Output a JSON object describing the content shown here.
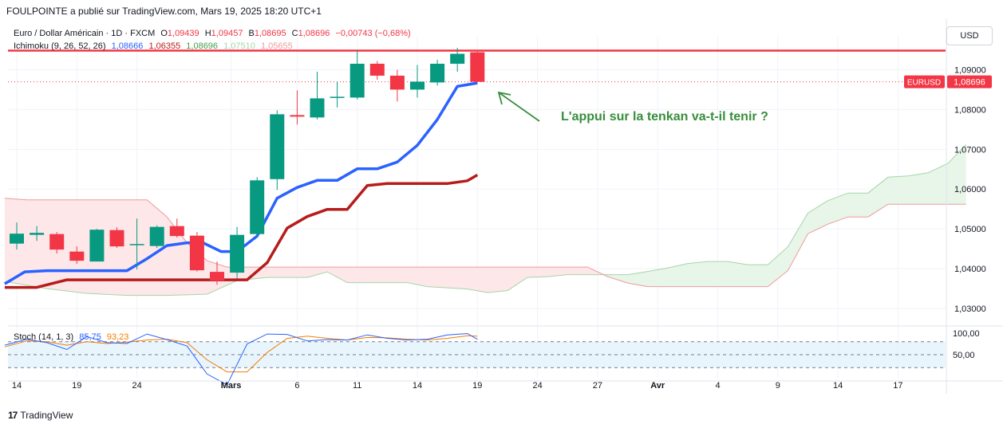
{
  "header": {
    "published_note": "FOULPOINTE a publié sur TradingView.com, Mars 19, 2025 18:20 UTC+1"
  },
  "legend": {
    "symbol_line": "Euro / Dollar Américain · 1D · FXCM",
    "o_label": "O",
    "o_value": "1,09439",
    "h_label": "H",
    "h_value": "1,09457",
    "b_label": "B",
    "b_value": "1,08695",
    "c_label": "C",
    "c_value": "1,08696",
    "change": "−0,00743 (−0,68%)",
    "ichimoku_label": "Ichimoku (9, 26, 52, 26)",
    "ichimoku_values": [
      "1,08666",
      "1,06355",
      "1,08696",
      "1,07510",
      "1,05655"
    ],
    "stoch_label": "Stoch (14, 1, 3)",
    "stoch_values": [
      "85,75",
      "93,23"
    ]
  },
  "currency_button": "USD",
  "price_tag": {
    "symbol": "EURUSD",
    "value": "1,08696"
  },
  "annotation": "L'appui sur la tenkan va-t-il tenir ?",
  "footer": {
    "brand": "TradingView",
    "logo": "17"
  },
  "colors": {
    "up": "#089981",
    "down": "#f23645",
    "tenkan": "#2962ff",
    "kijun": "#b71c1c",
    "cloud_up": "#e8f5e9",
    "cloud_down": "#fde7e9",
    "annotation": "#388e3c",
    "resistance": "#f23645",
    "stoch_k": "#2962ff",
    "stoch_d": "#f57c00"
  },
  "chart_data": {
    "type": "candlestick",
    "x_tick_labels": [
      "14",
      "19",
      "24",
      "Mars",
      "6",
      "11",
      "14",
      "19",
      "24",
      "27",
      "Avr",
      "4",
      "9",
      "14",
      "17"
    ],
    "y_tick_labels": [
      "1,09000",
      "1,08000",
      "1,07000",
      "1,06000",
      "1,05000",
      "1,04000",
      "1,03000"
    ],
    "y_ticks": [
      1.09,
      1.08,
      1.07,
      1.06,
      1.05,
      1.04,
      1.03
    ],
    "ylim": [
      1.0258,
      1.0955
    ],
    "resistance_level": 1.0948,
    "last_price": 1.08696,
    "candles": [
      {
        "o": 1.0463,
        "h": 1.0516,
        "l": 1.0448,
        "c": 1.0488
      },
      {
        "o": 1.0485,
        "h": 1.0507,
        "l": 1.047,
        "c": 1.049
      },
      {
        "o": 1.0487,
        "h": 1.0492,
        "l": 1.0438,
        "c": 1.0448
      },
      {
        "o": 1.0443,
        "h": 1.0456,
        "l": 1.0412,
        "c": 1.042
      },
      {
        "o": 1.0418,
        "h": 1.05,
        "l": 1.0418,
        "c": 1.0498
      },
      {
        "o": 1.0497,
        "h": 1.0504,
        "l": 1.0452,
        "c": 1.0456
      },
      {
        "o": 1.0462,
        "h": 1.0526,
        "l": 1.0398,
        "c": 1.0462
      },
      {
        "o": 1.0457,
        "h": 1.0509,
        "l": 1.0452,
        "c": 1.0505
      },
      {
        "o": 1.0507,
        "h": 1.0526,
        "l": 1.0478,
        "c": 1.0482
      },
      {
        "o": 1.0483,
        "h": 1.0492,
        "l": 1.0393,
        "c": 1.0396
      },
      {
        "o": 1.0392,
        "h": 1.0418,
        "l": 1.036,
        "c": 1.037
      },
      {
        "o": 1.039,
        "h": 1.0505,
        "l": 1.0375,
        "c": 1.0485
      },
      {
        "o": 1.0487,
        "h": 1.063,
        "l": 1.048,
        "c": 1.0622
      },
      {
        "o": 1.0625,
        "h": 1.0798,
        "l": 1.0598,
        "c": 1.0788
      },
      {
        "o": 1.0786,
        "h": 1.0848,
        "l": 1.0762,
        "c": 1.0782
      },
      {
        "o": 1.078,
        "h": 1.0895,
        "l": 1.0775,
        "c": 1.0828
      },
      {
        "o": 1.083,
        "h": 1.087,
        "l": 1.0805,
        "c": 1.0832
      },
      {
        "o": 1.083,
        "h": 1.0948,
        "l": 1.0825,
        "c": 1.0915
      },
      {
        "o": 1.0915,
        "h": 1.0922,
        "l": 1.0875,
        "c": 1.0885
      },
      {
        "o": 1.0885,
        "h": 1.09,
        "l": 1.082,
        "c": 1.085
      },
      {
        "o": 1.085,
        "h": 1.0912,
        "l": 1.083,
        "c": 1.087
      },
      {
        "o": 1.0868,
        "h": 1.0925,
        "l": 1.086,
        "c": 1.0915
      },
      {
        "o": 1.0915,
        "h": 1.0955,
        "l": 1.0895,
        "c": 1.094
      },
      {
        "o": 1.09439,
        "h": 1.09457,
        "l": 1.08695,
        "c": 1.08696
      }
    ],
    "tenkan": [
      {
        "bar": -0.6,
        "v": 1.0362
      },
      {
        "bar": 0.4,
        "v": 1.0392
      },
      {
        "bar": 1.5,
        "v": 1.0395
      },
      {
        "bar": 3.5,
        "v": 1.0395
      },
      {
        "bar": 5.5,
        "v": 1.0395
      },
      {
        "bar": 6.5,
        "v": 1.0425
      },
      {
        "bar": 7.5,
        "v": 1.0458
      },
      {
        "bar": 8.5,
        "v": 1.0465
      },
      {
        "bar": 9.3,
        "v": 1.0465
      },
      {
        "bar": 10.2,
        "v": 1.0443
      },
      {
        "bar": 11,
        "v": 1.0443
      },
      {
        "bar": 12,
        "v": 1.0482
      },
      {
        "bar": 13,
        "v": 1.0577
      },
      {
        "bar": 14,
        "v": 1.0604
      },
      {
        "bar": 15,
        "v": 1.0622
      },
      {
        "bar": 16,
        "v": 1.0622
      },
      {
        "bar": 17,
        "v": 1.0651
      },
      {
        "bar": 18,
        "v": 1.0651
      },
      {
        "bar": 19,
        "v": 1.0668
      },
      {
        "bar": 20,
        "v": 1.071
      },
      {
        "bar": 21,
        "v": 1.0775
      },
      {
        "bar": 22,
        "v": 1.0858
      },
      {
        "bar": 23,
        "v": 1.08666
      }
    ],
    "kijun": [
      {
        "bar": -0.6,
        "v": 1.0353
      },
      {
        "bar": 1.0,
        "v": 1.0353
      },
      {
        "bar": 2.5,
        "v": 1.0372
      },
      {
        "bar": 11.5,
        "v": 1.0372
      },
      {
        "bar": 12.5,
        "v": 1.0415
      },
      {
        "bar": 13.5,
        "v": 1.0502
      },
      {
        "bar": 14.5,
        "v": 1.0531
      },
      {
        "bar": 15.5,
        "v": 1.0549
      },
      {
        "bar": 16.5,
        "v": 1.0549
      },
      {
        "bar": 17.5,
        "v": 1.0609
      },
      {
        "bar": 18.5,
        "v": 1.0614
      },
      {
        "bar": 21.5,
        "v": 1.0614
      },
      {
        "bar": 22.5,
        "v": 1.0621
      },
      {
        "bar": 23,
        "v": 1.06355
      }
    ],
    "senkou_a": [
      {
        "bar": -0.6,
        "v": 1.0368
      },
      {
        "bar": 1.5,
        "v": 1.035
      },
      {
        "bar": 3.5,
        "v": 1.0338
      },
      {
        "bar": 5.5,
        "v": 1.0333
      },
      {
        "bar": 7.5,
        "v": 1.0333
      },
      {
        "bar": 9.5,
        "v": 1.0336
      },
      {
        "bar": 11,
        "v": 1.037
      },
      {
        "bar": 12.5,
        "v": 1.0378
      },
      {
        "bar": 14.5,
        "v": 1.0378
      },
      {
        "bar": 15.5,
        "v": 1.0392
      },
      {
        "bar": 16.5,
        "v": 1.0365
      },
      {
        "bar": 19.5,
        "v": 1.0365
      },
      {
        "bar": 20.5,
        "v": 1.0355
      },
      {
        "bar": 22.5,
        "v": 1.0349
      },
      {
        "bar": 23.5,
        "v": 1.034
      },
      {
        "bar": 24.5,
        "v": 1.0345
      },
      {
        "bar": 25.5,
        "v": 1.0378
      },
      {
        "bar": 26.5,
        "v": 1.038
      },
      {
        "bar": 27.5,
        "v": 1.0385
      },
      {
        "bar": 30.5,
        "v": 1.0385
      },
      {
        "bar": 31.5,
        "v": 1.0393
      },
      {
        "bar": 32.5,
        "v": 1.0402
      },
      {
        "bar": 33.5,
        "v": 1.0413
      },
      {
        "bar": 34.5,
        "v": 1.0418
      },
      {
        "bar": 35.5,
        "v": 1.0418
      },
      {
        "bar": 36.5,
        "v": 1.041
      },
      {
        "bar": 37.5,
        "v": 1.041
      },
      {
        "bar": 38.5,
        "v": 1.0455
      },
      {
        "bar": 39.5,
        "v": 1.054
      },
      {
        "bar": 40.5,
        "v": 1.0571
      },
      {
        "bar": 41.5,
        "v": 1.059
      },
      {
        "bar": 42.5,
        "v": 1.059
      },
      {
        "bar": 43.5,
        "v": 1.063
      },
      {
        "bar": 44.5,
        "v": 1.0633
      },
      {
        "bar": 45.5,
        "v": 1.0641
      },
      {
        "bar": 46.5,
        "v": 1.0665
      },
      {
        "bar": 47.4,
        "v": 1.0712
      }
    ],
    "senkou_b": [
      {
        "bar": -0.6,
        "v": 1.0577
      },
      {
        "bar": 0.5,
        "v": 1.0573
      },
      {
        "bar": 6.5,
        "v": 1.0573
      },
      {
        "bar": 7.5,
        "v": 1.053
      },
      {
        "bar": 8.5,
        "v": 1.0465
      },
      {
        "bar": 9.5,
        "v": 1.042
      },
      {
        "bar": 10.5,
        "v": 1.0404
      },
      {
        "bar": 28.5,
        "v": 1.0404
      },
      {
        "bar": 29.5,
        "v": 1.038
      },
      {
        "bar": 30.5,
        "v": 1.0364
      },
      {
        "bar": 31.5,
        "v": 1.0355
      },
      {
        "bar": 37.5,
        "v": 1.0355
      },
      {
        "bar": 38.5,
        "v": 1.0395
      },
      {
        "bar": 39.5,
        "v": 1.0488
      },
      {
        "bar": 40.5,
        "v": 1.0512
      },
      {
        "bar": 41.5,
        "v": 1.053
      },
      {
        "bar": 42.5,
        "v": 1.053
      },
      {
        "bar": 43.5,
        "v": 1.0562
      },
      {
        "bar": 47.4,
        "v": 1.0562
      }
    ],
    "stochastic": {
      "y_tick_labels": [
        "100,00",
        "50,00"
      ],
      "upper_band": 80,
      "lower_band": 20,
      "k": [
        {
          "bar": -0.6,
          "v": 72
        },
        {
          "bar": 0.5,
          "v": 86
        },
        {
          "bar": 1.5,
          "v": 78
        },
        {
          "bar": 2.5,
          "v": 62
        },
        {
          "bar": 3.5,
          "v": 92
        },
        {
          "bar": 4.5,
          "v": 78
        },
        {
          "bar": 5.5,
          "v": 76
        },
        {
          "bar": 6.5,
          "v": 98
        },
        {
          "bar": 7.5,
          "v": 85
        },
        {
          "bar": 8.5,
          "v": 70
        },
        {
          "bar": 9.5,
          "v": 5
        },
        {
          "bar": 10.5,
          "v": -20
        },
        {
          "bar": 11.5,
          "v": 75
        },
        {
          "bar": 12.5,
          "v": 98
        },
        {
          "bar": 13.5,
          "v": 97
        },
        {
          "bar": 14.5,
          "v": 82
        },
        {
          "bar": 15.5,
          "v": 85
        },
        {
          "bar": 16.5,
          "v": 84
        },
        {
          "bar": 17.5,
          "v": 96
        },
        {
          "bar": 18.5,
          "v": 88
        },
        {
          "bar": 19.5,
          "v": 84
        },
        {
          "bar": 20.5,
          "v": 86
        },
        {
          "bar": 21.5,
          "v": 96
        },
        {
          "bar": 22.5,
          "v": 99
        },
        {
          "bar": 23,
          "v": 85.75
        }
      ],
      "d": [
        {
          "bar": -0.6,
          "v": 68
        },
        {
          "bar": 0.5,
          "v": 82
        },
        {
          "bar": 1.5,
          "v": 80
        },
        {
          "bar": 2.5,
          "v": 72
        },
        {
          "bar": 3.5,
          "v": 80
        },
        {
          "bar": 4.5,
          "v": 76
        },
        {
          "bar": 5.5,
          "v": 79
        },
        {
          "bar": 6.5,
          "v": 84
        },
        {
          "bar": 7.5,
          "v": 86
        },
        {
          "bar": 8.5,
          "v": 78
        },
        {
          "bar": 9.5,
          "v": 38
        },
        {
          "bar": 10.5,
          "v": 10
        },
        {
          "bar": 11.5,
          "v": 10
        },
        {
          "bar": 12.5,
          "v": 55
        },
        {
          "bar": 13.5,
          "v": 88
        },
        {
          "bar": 14.5,
          "v": 93
        },
        {
          "bar": 15.5,
          "v": 88
        },
        {
          "bar": 16.5,
          "v": 84
        },
        {
          "bar": 17.5,
          "v": 90
        },
        {
          "bar": 18.5,
          "v": 89
        },
        {
          "bar": 19.5,
          "v": 86
        },
        {
          "bar": 20.5,
          "v": 84
        },
        {
          "bar": 21.5,
          "v": 88
        },
        {
          "bar": 22.5,
          "v": 94
        },
        {
          "bar": 23,
          "v": 93.23
        }
      ]
    }
  }
}
